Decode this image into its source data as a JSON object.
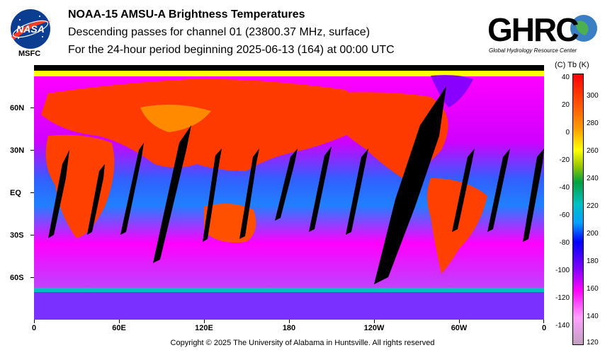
{
  "header": {
    "title": "NOAA-15 AMSU-A Brightness Temperatures",
    "subtitle": "Descending passes for channel 01 (23800.37 MHz, surface)",
    "period": "For the 24-hour period beginning 2025-06-13 (164) at 00:00 UTC"
  },
  "logos": {
    "nasa_text": "NASA",
    "msfc_text": "MSFC",
    "ghrc_text": "GHRC",
    "ghrc_subtitle": "Global Hydrology Resource Center"
  },
  "map": {
    "lat_labels": [
      "60N",
      "30N",
      "EQ",
      "30S",
      "60S"
    ],
    "lon_labels": [
      "0",
      "60E",
      "120E",
      "180",
      "120W",
      "60W",
      "0"
    ],
    "colors": {
      "land_hot": "#ff3000",
      "ocean_magenta": "#ff00ff",
      "gap": "#000000"
    }
  },
  "colorbar": {
    "units_label": "(C)  Tb  (K)",
    "celsius_ticks": [
      "40",
      "20",
      "0",
      "-20",
      "-40",
      "-60",
      "-80",
      "-100",
      "-120",
      "-140"
    ],
    "kelvin_ticks": [
      "300",
      "280",
      "260",
      "240",
      "220",
      "200",
      "180",
      "160",
      "140",
      "120"
    ]
  },
  "footer": {
    "copyright": "Copyright © 2025 The University of Alabama in Huntsville.  All rights reserved"
  }
}
